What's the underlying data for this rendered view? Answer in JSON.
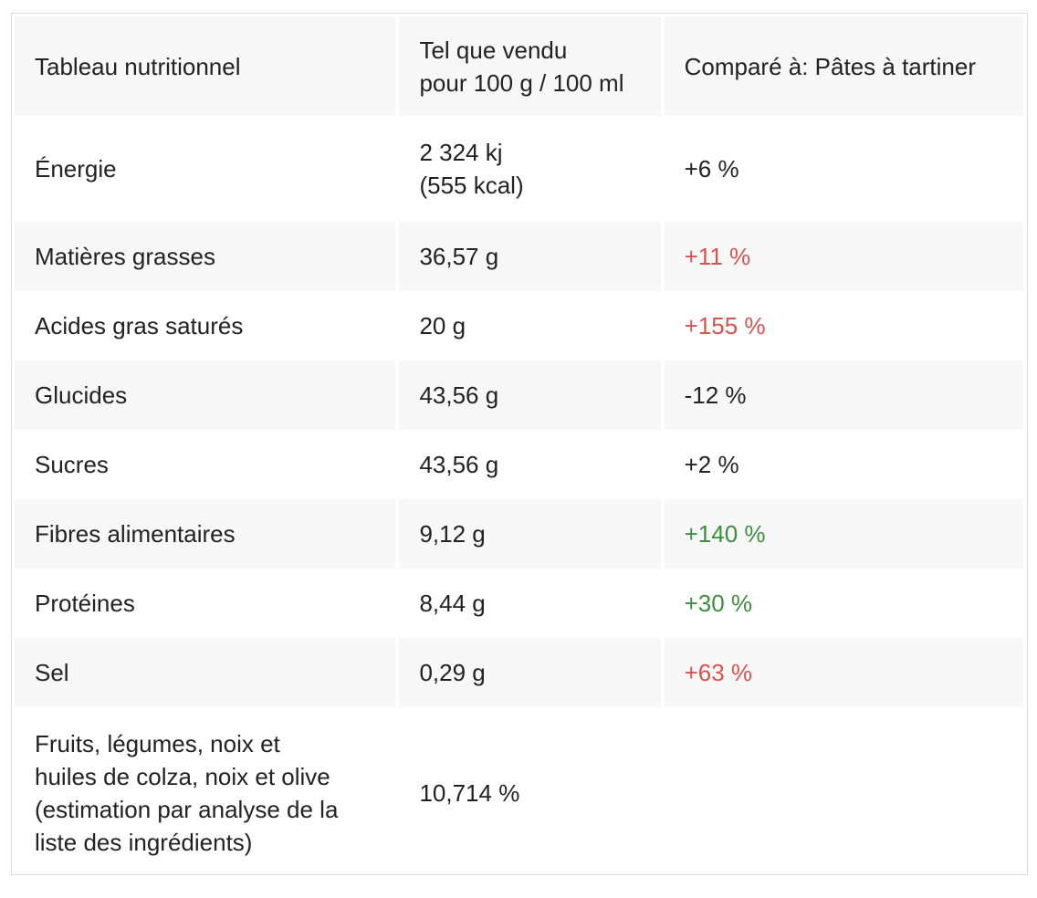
{
  "table": {
    "headers": {
      "col1": "Tableau nutritionnel",
      "col2_line1": "Tel que vendu",
      "col2_line2": "pour 100 g / 100 ml",
      "col3": "Comparé à: Pâtes à tartiner"
    },
    "rows": [
      {
        "label": "Énergie",
        "value_line1": "2 324 kj",
        "value_line2": "(555 kcal)",
        "compare": "+6 %",
        "compare_color": "#222222",
        "indented": false
      },
      {
        "label": "Matières grasses",
        "value": "36,57 g",
        "compare": "+11 %",
        "compare_color": "#d9534f",
        "indented": false
      },
      {
        "label": "Acides gras saturés",
        "value": "20 g",
        "compare": "+155 %",
        "compare_color": "#d9534f",
        "indented": true
      },
      {
        "label": "Glucides",
        "value": "43,56 g",
        "compare": "-12 %",
        "compare_color": "#222222",
        "indented": false
      },
      {
        "label": "Sucres",
        "value": "43,56 g",
        "compare": "+2 %",
        "compare_color": "#222222",
        "indented": true
      },
      {
        "label": "Fibres alimentaires",
        "value": "9,12 g",
        "compare": "+140 %",
        "compare_color": "#3e8e41",
        "indented": false
      },
      {
        "label": "Protéines",
        "value": "8,44 g",
        "compare": "+30 %",
        "compare_color": "#3e8e41",
        "indented": false
      },
      {
        "label": "Sel",
        "value": "0,29 g",
        "compare": "+63 %",
        "compare_color": "#d9534f",
        "indented": false
      }
    ],
    "fruits_row": {
      "label_line1": "Fruits, légumes, noix et",
      "label_line2": "huiles de colza, noix et olive",
      "label_line3": "(estimation par analyse de la",
      "label_line4": "liste des ingrédients)",
      "value": "10,714 %",
      "compare": ""
    }
  },
  "colors": {
    "shaded_row": "#f7f7f7",
    "border": "#d9d9d9",
    "text": "#222222",
    "negative": "#d9534f",
    "positive": "#3e8e41"
  }
}
